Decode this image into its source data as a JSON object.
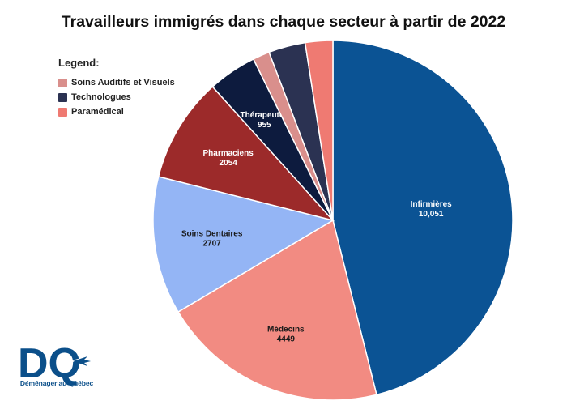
{
  "chart_data": {
    "type": "pie",
    "title": "Travailleurs immigrés dans chaque secteur à partir de 2022",
    "legend_title": "Legend:",
    "legend_placement": "top-left",
    "legend": [
      {
        "label": "Soins Auditifs et Visuels",
        "color": "#d98f8c"
      },
      {
        "label": "Technologues",
        "color": "#2b3252"
      },
      {
        "label": "Paramédical",
        "color": "#ef7a72"
      }
    ],
    "slices": [
      {
        "label": "Infirmières",
        "value_label": "10,051",
        "value": 10051,
        "color": "#0b5394",
        "labeled": true
      },
      {
        "label": "Médecins",
        "value_label": "4449",
        "value": 4449,
        "color": "#f28b82",
        "labeled": true
      },
      {
        "label": "Soins Dentaires",
        "value_label": "2707",
        "value": 2707,
        "color": "#94b5f5",
        "labeled": true
      },
      {
        "label": "Pharmaciens",
        "value_label": "2054",
        "value": 2054,
        "color": "#9c2a2a",
        "labeled": true
      },
      {
        "label": "Thérapeutes",
        "value_label": "955",
        "value": 955,
        "color": "#0d1b3e",
        "labeled": true
      },
      {
        "label": "Soins Auditifs et Visuels",
        "value_label": "",
        "value": 330,
        "color": "#d98f8c",
        "labeled": false
      },
      {
        "label": "Technologues",
        "value_label": "",
        "value": 720,
        "color": "#2b3252",
        "labeled": false
      },
      {
        "label": "Paramédical",
        "value_label": "",
        "value": 540,
        "color": "#ef7a72",
        "labeled": false
      }
    ]
  },
  "logo": {
    "letters": "DQ",
    "tagline": "Déménager au Québec",
    "color": "#0b4f8a"
  }
}
